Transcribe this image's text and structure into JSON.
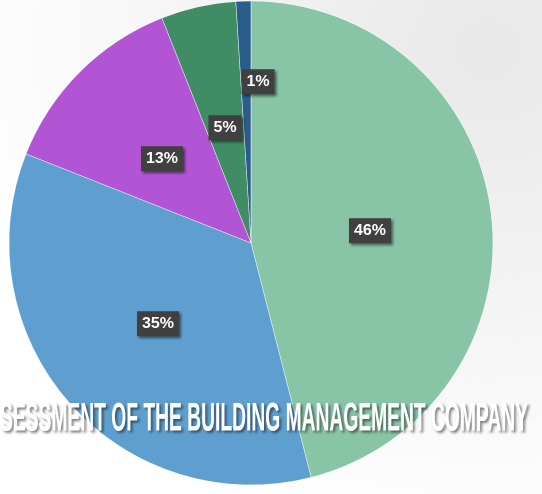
{
  "chart_data": {
    "type": "pie",
    "title": "SESSMENT OF THE BUILDING MANAGEMENT COMPANY",
    "values": [
      46,
      35,
      13,
      5,
      1
    ],
    "value_labels": [
      "46%",
      "35%",
      "13%",
      "5%",
      "1%"
    ],
    "colors": [
      "#88c4a6",
      "#5f9fcf",
      "#b155d4",
      "#3f8c65",
      "#2a5d8a"
    ]
  }
}
